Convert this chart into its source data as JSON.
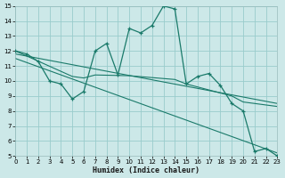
{
  "xlabel": "Humidex (Indice chaleur)",
  "bg_color": "#cce8e8",
  "grid_color": "#99cccc",
  "line_color": "#1a7a6a",
  "xmin": 0,
  "xmax": 23,
  "ymin": 5,
  "ymax": 15,
  "line1_x": [
    0,
    1,
    2,
    3,
    4,
    5,
    6,
    7,
    8,
    9,
    10,
    11,
    12,
    13,
    14,
    15,
    16,
    17,
    18,
    19,
    20,
    21,
    22,
    23
  ],
  "line1_y": [
    12.0,
    11.8,
    11.3,
    10.0,
    9.8,
    8.8,
    9.3,
    12.0,
    12.5,
    10.4,
    13.5,
    13.2,
    13.7,
    15.0,
    14.8,
    9.8,
    10.3,
    10.5,
    9.7,
    8.5,
    8.0,
    5.3,
    5.5,
    5.0
  ],
  "line2_x": [
    0,
    5,
    6,
    7,
    10,
    14,
    15,
    19,
    20,
    21,
    22,
    23
  ],
  "line2_y": [
    12.0,
    10.3,
    10.2,
    10.4,
    10.35,
    10.1,
    9.8,
    9.0,
    8.6,
    8.5,
    8.4,
    8.3
  ],
  "line3_x": [
    0,
    23
  ],
  "line3_y": [
    11.8,
    8.5
  ],
  "line4_x": [
    0,
    23
  ],
  "line4_y": [
    11.5,
    5.2
  ]
}
